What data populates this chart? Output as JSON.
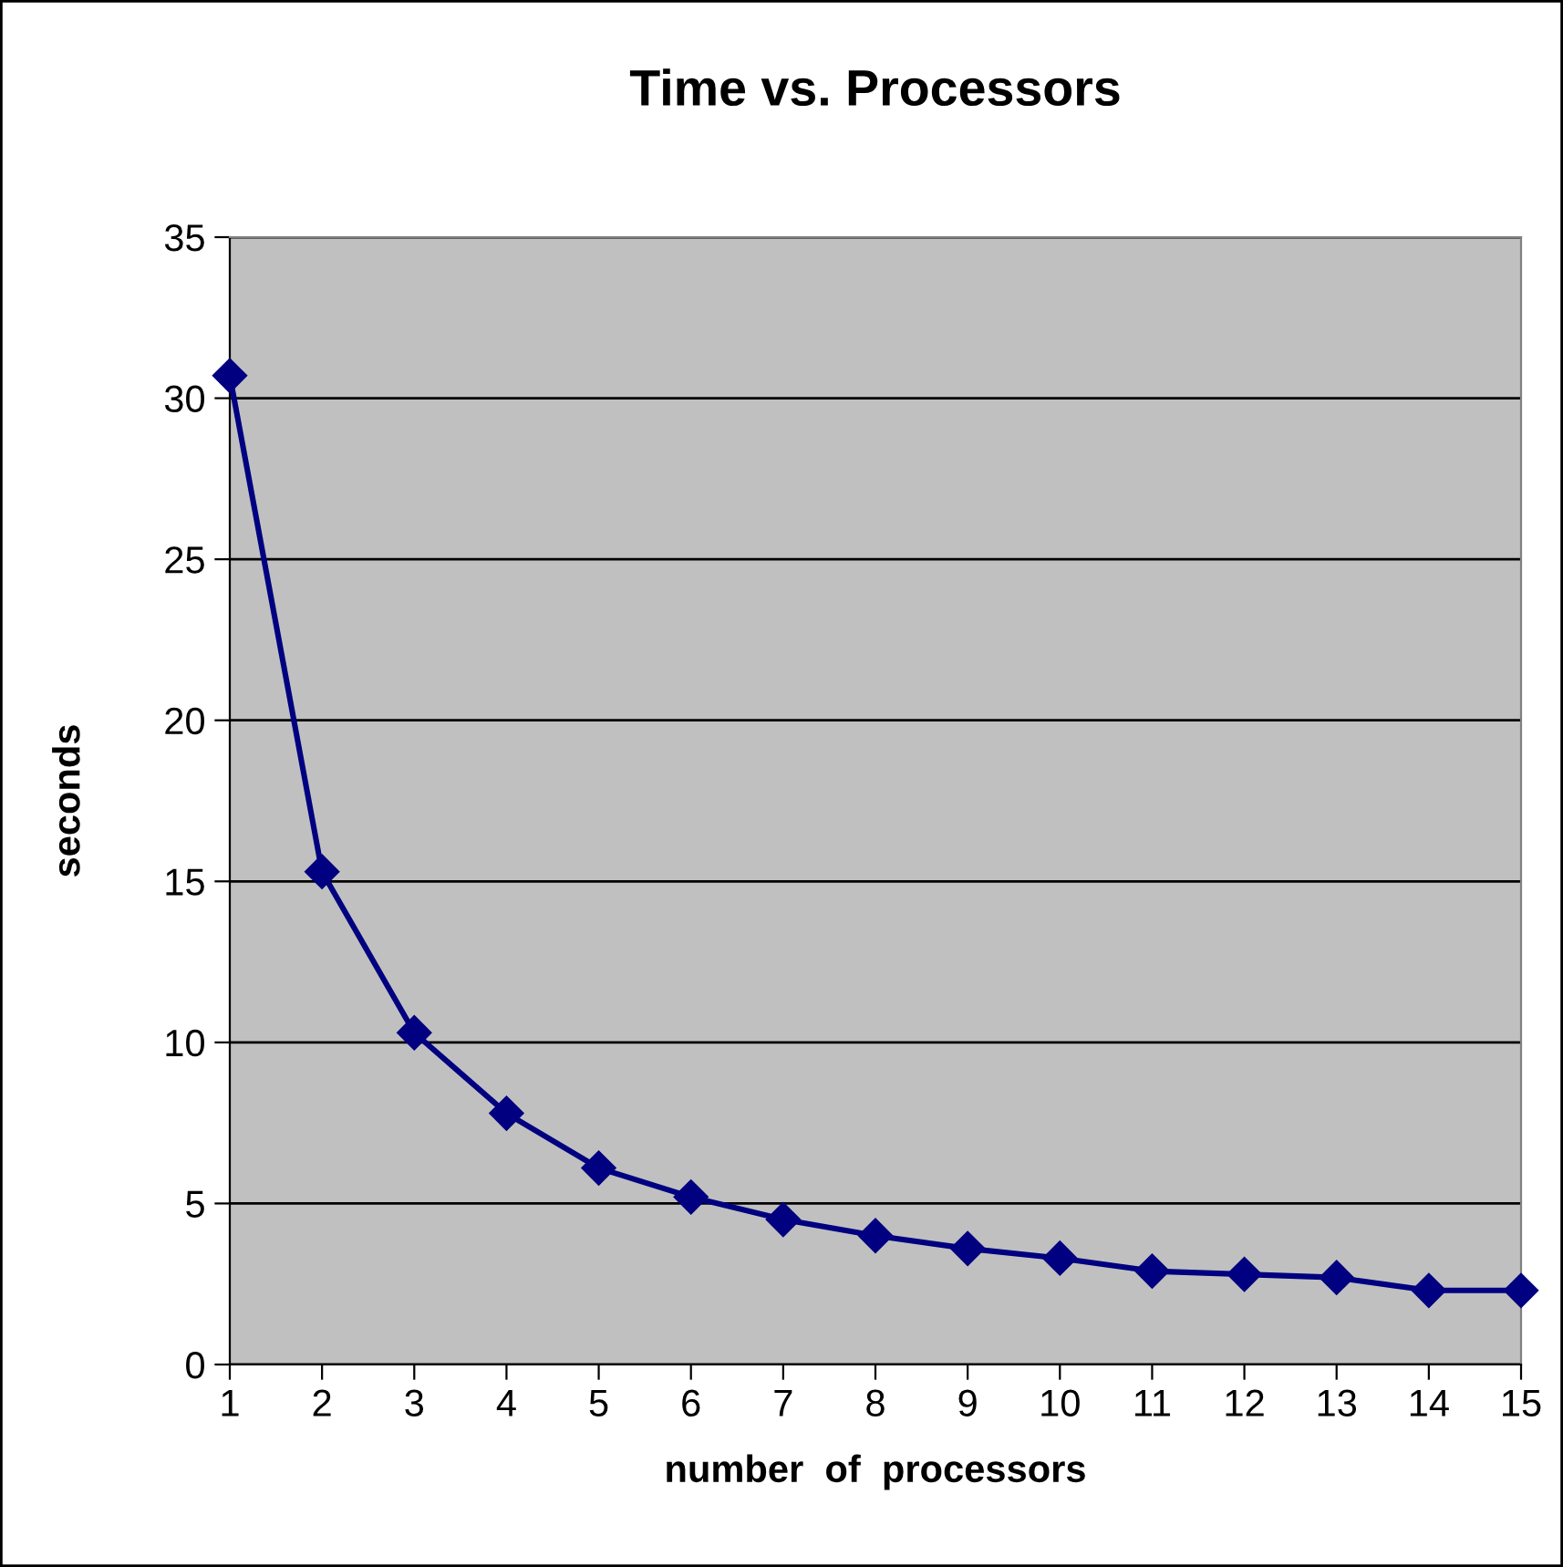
{
  "chart_data": {
    "type": "line",
    "title": "Time vs. Processors",
    "xlabel": "number  of  processors",
    "ylabel": "seconds",
    "categories": [
      "1",
      "2",
      "3",
      "4",
      "5",
      "6",
      "7",
      "8",
      "9",
      "10",
      "11",
      "12",
      "13",
      "14",
      "15"
    ],
    "series": [
      {
        "color": "#000080",
        "values": [
          30.7,
          15.3,
          10.3,
          7.8,
          6.1,
          5.2,
          4.5,
          4.0,
          3.6,
          3.3,
          2.9,
          2.8,
          2.7,
          2.3,
          2.3
        ]
      }
    ],
    "ylim": [
      0,
      35
    ],
    "yticks": [
      0,
      5,
      10,
      15,
      20,
      25,
      30,
      35
    ],
    "grid": "y",
    "marker": "diamond",
    "line_style": "solid",
    "legend": false
  }
}
